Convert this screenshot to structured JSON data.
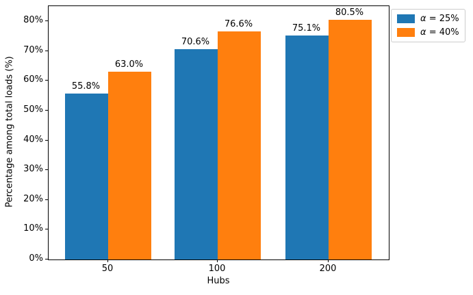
{
  "chart_data": {
    "type": "bar",
    "title": "",
    "xlabel": "Hubs",
    "ylabel": "Percentage among total loads (%)",
    "categories": [
      "50",
      "100",
      "200"
    ],
    "series": [
      {
        "name": "α = 25%",
        "legend_symbol": "α",
        "legend_rest": " = 25%",
        "color": "#1f77b4",
        "values": [
          55.8,
          70.6,
          75.1
        ],
        "labels": [
          "55.8%",
          "70.6%",
          "75.1%"
        ]
      },
      {
        "name": "α = 40%",
        "legend_symbol": "α",
        "legend_rest": " = 40%",
        "color": "#ff7f0e",
        "values": [
          63.0,
          76.6,
          80.5
        ],
        "labels": [
          "63.0%",
          "76.6%",
          "80.5%"
        ]
      }
    ],
    "ytick_values": [
      0,
      10,
      20,
      30,
      40,
      50,
      60,
      70,
      80
    ],
    "ytick_labels": [
      "0%",
      "10%",
      "20%",
      "30%",
      "40%",
      "50%",
      "60%",
      "70%",
      "80%"
    ],
    "ylim": [
      0,
      85.05
    ],
    "grid": false,
    "legend_position": "outside-top-right"
  }
}
